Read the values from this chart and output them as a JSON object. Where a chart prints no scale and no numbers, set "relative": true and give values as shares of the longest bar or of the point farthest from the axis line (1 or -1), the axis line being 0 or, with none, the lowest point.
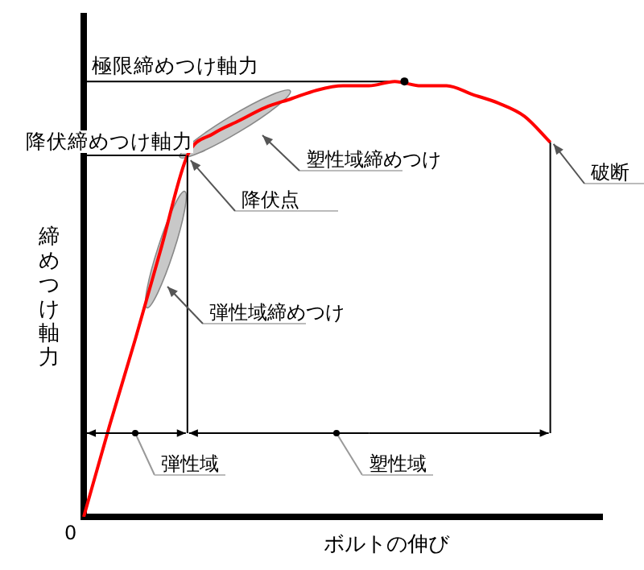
{
  "chart_data": {
    "type": "line",
    "relative": true,
    "xlabel": "ボルトの伸び",
    "ylabel": "締めつけ軸力",
    "marker": "none",
    "line_style": "solid",
    "legend": false,
    "grid": false,
    "categories": [
      null,
      null,
      null,
      null,
      null,
      null,
      null,
      null,
      null,
      null,
      null,
      null,
      null,
      null,
      null,
      null,
      null,
      null,
      null,
      null,
      null
    ],
    "series": [
      {
        "color": "#ff0000",
        "values": [
          0,
          0.21,
          0.41,
          0.62,
          0.83,
          0.88,
          0.91,
          0.94,
          0.96,
          0.98,
          0.99,
          0.99,
          1,
          0.99,
          0.99,
          0.97,
          0.95,
          0.92,
          0.86,
          null,
          null
        ]
      }
    ],
    "ref_lines": [
      {
        "axis": "y",
        "value": 1,
        "label": "極限締めつけ軸力",
        "color": "#000000"
      },
      {
        "axis": "y",
        "value": 0.83,
        "label": "降伏締めつけ軸力",
        "color": "#000000"
      }
    ],
    "annotations": [
      "降伏点",
      "塑性域締めつけ",
      "弾性域締めつけ",
      "破断",
      "弾性域",
      "塑性域",
      "0"
    ]
  }
}
